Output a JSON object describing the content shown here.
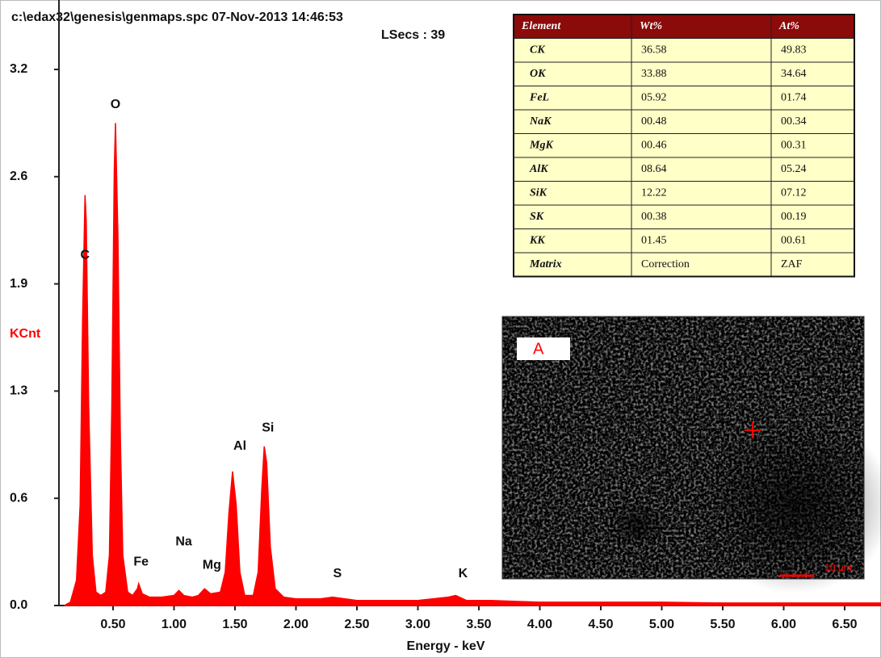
{
  "chart_data": {
    "type": "area",
    "header": "c:\\edax32\\genesis\\genmaps.spc  07-Nov-2013 14:46:53",
    "subheader": "LSecs :  39",
    "y_label": "KCnt",
    "x_label": "Energy - keV",
    "color": "#ff0000",
    "xlim": [
      0.06,
      6.8
    ],
    "ylim": [
      0,
      3.2
    ],
    "xticks": [
      {
        "value": 0.5,
        "label": "0.50"
      },
      {
        "value": 1.0,
        "label": "1.00"
      },
      {
        "value": 1.5,
        "label": "1.50"
      },
      {
        "value": 2.0,
        "label": "2.00"
      },
      {
        "value": 2.5,
        "label": "2.50"
      },
      {
        "value": 3.0,
        "label": "3.00"
      },
      {
        "value": 3.5,
        "label": "3.50"
      },
      {
        "value": 4.0,
        "label": "4.00"
      },
      {
        "value": 4.5,
        "label": "4.50"
      },
      {
        "value": 5.0,
        "label": "5.00"
      },
      {
        "value": 5.5,
        "label": "5.50"
      },
      {
        "value": 6.0,
        "label": "6.00"
      },
      {
        "value": 6.5,
        "label": "6.50"
      }
    ],
    "yticks": [
      {
        "value": 0,
        "label": "0.0"
      },
      {
        "value": 0.64,
        "label": "0.6"
      },
      {
        "value": 1.28,
        "label": "1.3"
      },
      {
        "value": 1.92,
        "label": "1.9"
      },
      {
        "value": 2.56,
        "label": "2.6"
      },
      3.2
    ],
    "x": [
      0.1,
      0.15,
      0.2,
      0.23,
      0.25,
      0.27,
      0.28,
      0.3,
      0.33,
      0.36,
      0.4,
      0.44,
      0.47,
      0.49,
      0.51,
      0.52,
      0.54,
      0.56,
      0.58,
      0.62,
      0.66,
      0.7,
      0.71,
      0.74,
      0.8,
      0.9,
      1.0,
      1.04,
      1.08,
      1.15,
      1.2,
      1.25,
      1.3,
      1.38,
      1.42,
      1.45,
      1.48,
      1.51,
      1.54,
      1.58,
      1.65,
      1.69,
      1.72,
      1.74,
      1.76,
      1.79,
      1.83,
      1.9,
      2.0,
      2.2,
      2.3,
      2.5,
      2.8,
      3.0,
      3.25,
      3.31,
      3.4,
      3.6,
      4.0,
      4.5,
      5.0,
      5.5,
      6.0,
      6.5,
      6.8
    ],
    "values": [
      0.0,
      0.02,
      0.15,
      0.6,
      1.7,
      2.45,
      2.3,
      1.2,
      0.3,
      0.08,
      0.06,
      0.08,
      0.3,
      1.2,
      2.6,
      2.88,
      2.2,
      1.0,
      0.3,
      0.08,
      0.06,
      0.1,
      0.13,
      0.07,
      0.05,
      0.05,
      0.06,
      0.09,
      0.06,
      0.05,
      0.06,
      0.1,
      0.07,
      0.08,
      0.2,
      0.55,
      0.8,
      0.6,
      0.2,
      0.06,
      0.06,
      0.2,
      0.7,
      0.95,
      0.85,
      0.35,
      0.1,
      0.05,
      0.04,
      0.04,
      0.05,
      0.03,
      0.03,
      0.03,
      0.05,
      0.06,
      0.03,
      0.03,
      0.02,
      0.02,
      0.02,
      0.015,
      0.015,
      0.015,
      0.015
    ],
    "annotations": [
      {
        "text": "C",
        "x": 0.27,
        "y": 2.09
      },
      {
        "text": "O",
        "x": 0.52,
        "y": 2.99
      },
      {
        "text": "Fe",
        "x": 0.73,
        "y": 0.26
      },
      {
        "text": "Na",
        "x": 1.08,
        "y": 0.38
      },
      {
        "text": "Mg",
        "x": 1.31,
        "y": 0.24
      },
      {
        "text": "Al",
        "x": 1.54,
        "y": 0.95
      },
      {
        "text": "Si",
        "x": 1.77,
        "y": 1.06
      },
      {
        "text": "S",
        "x": 2.34,
        "y": 0.19
      },
      {
        "text": "K",
        "x": 3.37,
        "y": 0.19
      }
    ]
  },
  "table": {
    "header": [
      "Element",
      "Wt%",
      "At%"
    ],
    "rows": [
      [
        "CK",
        "36.58",
        "49.83"
      ],
      [
        "OK",
        "33.88",
        "34.64"
      ],
      [
        "FeL",
        "05.92",
        "01.74"
      ],
      [
        "NaK",
        "00.48",
        "00.34"
      ],
      [
        "MgK",
        "00.46",
        "00.31"
      ],
      [
        "AlK",
        "08.64",
        "05.24"
      ],
      [
        "SiK",
        "12.22",
        "07.12"
      ],
      [
        "SK",
        "00.38",
        "00.19"
      ],
      [
        "KK",
        "01.45",
        "00.61"
      ],
      [
        "Matrix",
        "Correction",
        "ZAF"
      ]
    ]
  },
  "image": {
    "label": "A",
    "scale": "10 µm"
  }
}
